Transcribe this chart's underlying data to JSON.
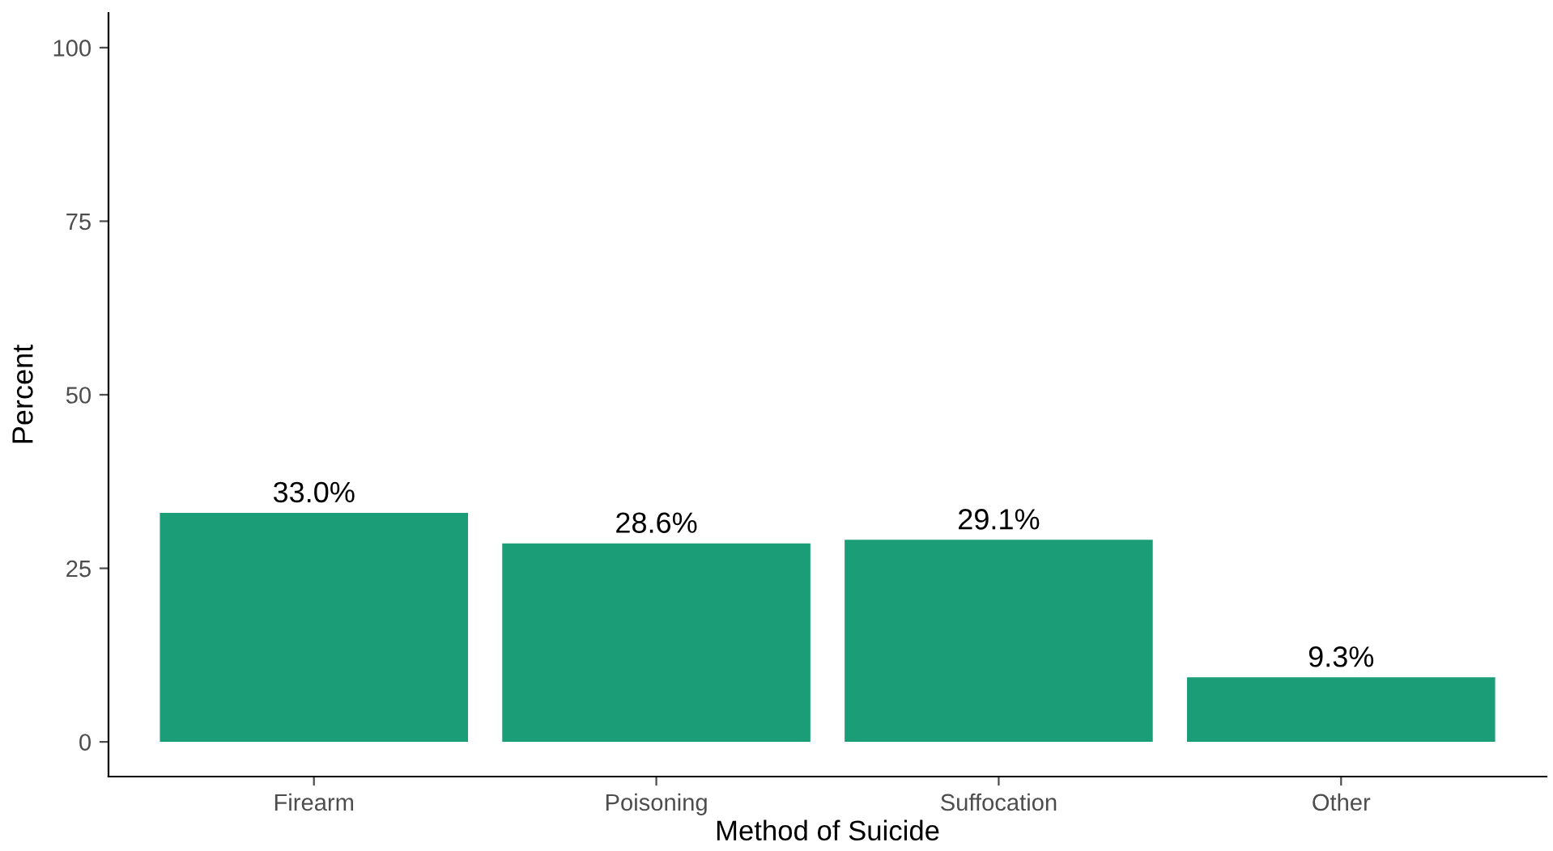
{
  "chart_data": {
    "type": "bar",
    "xlabel": "Method of Suicide",
    "ylabel": "Percent",
    "categories": [
      "Firearm",
      "Poisoning",
      "Suffocation",
      "Other"
    ],
    "values": [
      33.0,
      28.6,
      29.1,
      9.3
    ],
    "value_labels": [
      "33.0%",
      "28.6%",
      "29.1%",
      "9.3%"
    ],
    "color": "#1b9e77",
    "ylim": [
      -5,
      105
    ],
    "yticks": [
      0,
      25,
      50,
      75,
      100
    ],
    "grid": false,
    "legend": false
  }
}
